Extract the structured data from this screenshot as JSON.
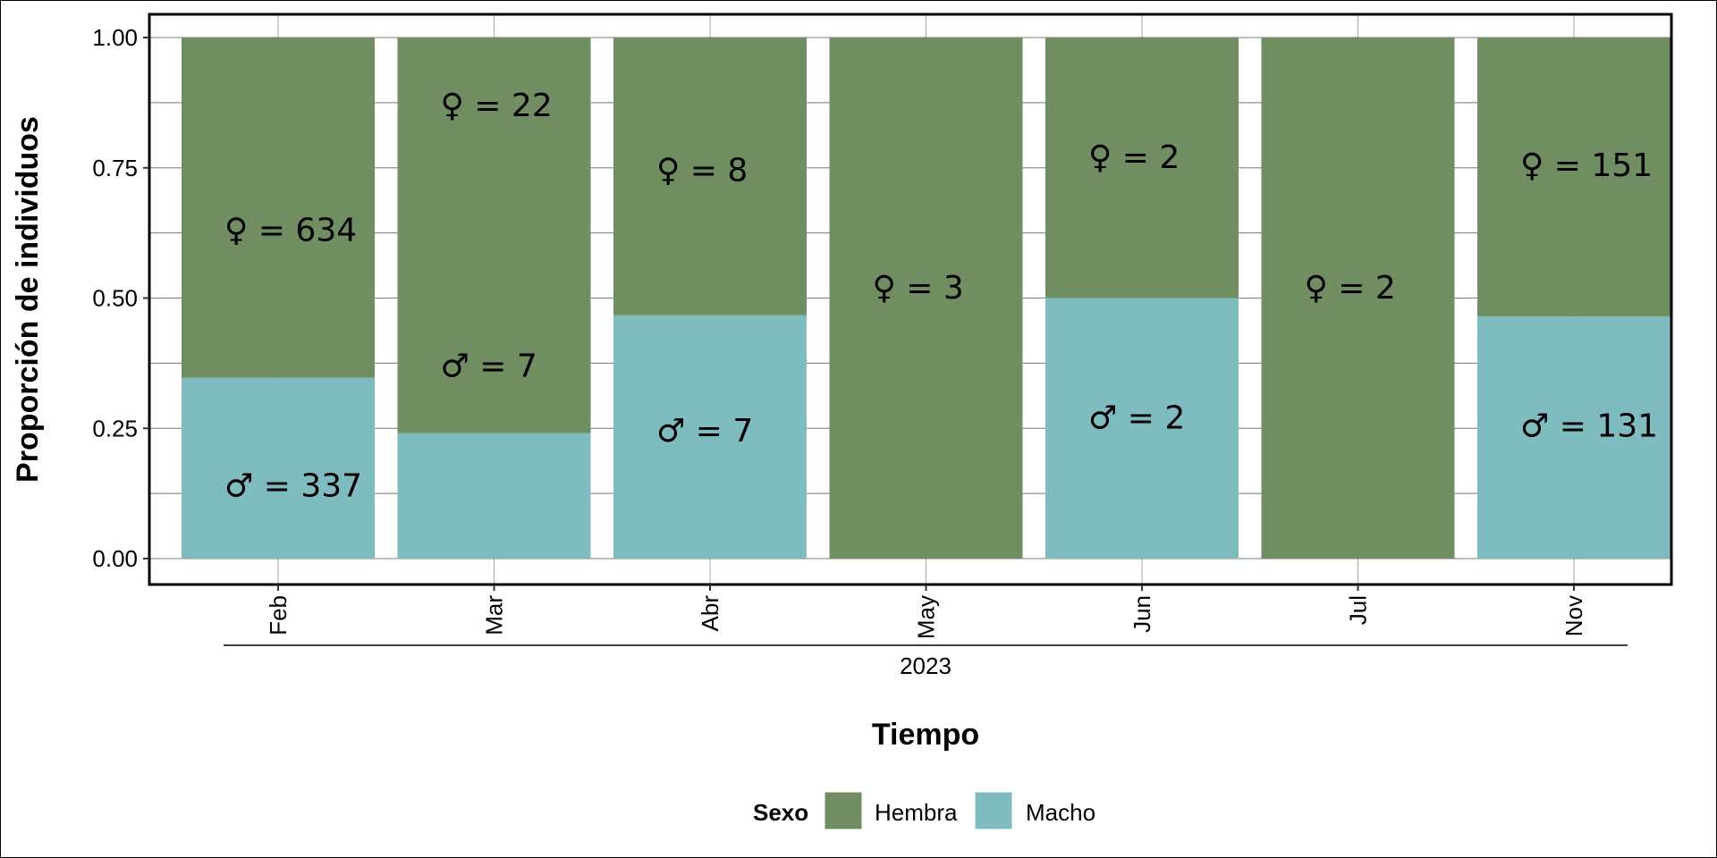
{
  "chart_data": {
    "type": "bar",
    "stacked": true,
    "categories": [
      "Feb",
      "Mar",
      "Abr",
      "May",
      "Jun",
      "Jul",
      "Nov"
    ],
    "group_label": "2023",
    "series": [
      {
        "name": "Macho",
        "color": "#7fbcbf",
        "values": [
          0.347,
          0.241,
          0.467,
          0.0,
          0.5,
          0.0,
          0.465
        ]
      },
      {
        "name": "Hembra",
        "color": "#718d62",
        "values": [
          0.653,
          0.759,
          0.533,
          1.0,
          0.5,
          1.0,
          0.535
        ]
      }
    ],
    "annotations": [
      {
        "category": "Feb",
        "text": "♀ = 634",
        "y": 0.63
      },
      {
        "category": "Feb",
        "text": "♂ = 337",
        "y": 0.14
      },
      {
        "category": "Mar",
        "text": "♀ = 22",
        "y": 0.87
      },
      {
        "category": "Mar",
        "text": "♂ = 7",
        "y": 0.37
      },
      {
        "category": "Abr",
        "text": "♀ = 8",
        "y": 0.745
      },
      {
        "category": "Abr",
        "text": "♂ = 7",
        "y": 0.245
      },
      {
        "category": "May",
        "text": "♀ = 3",
        "y": 0.52
      },
      {
        "category": "Jun",
        "text": "♀ = 2",
        "y": 0.77
      },
      {
        "category": "Jun",
        "text": "♂ = 2",
        "y": 0.27
      },
      {
        "category": "Jul",
        "text": "♀ = 2",
        "y": 0.52
      },
      {
        "category": "Nov",
        "text": "♀ = 151",
        "y": 0.755
      },
      {
        "category": "Nov",
        "text": "♂ = 131",
        "y": 0.255
      }
    ],
    "ylabel": "Proporción de individuos",
    "xlabel": "Tiempo",
    "ylim": [
      0,
      1
    ],
    "yticks": [
      0.0,
      0.25,
      0.5,
      0.75,
      1.0
    ],
    "ytick_labels": [
      "0.00",
      "0.25",
      "0.50",
      "0.75",
      "1.00"
    ],
    "grid": true,
    "legend": {
      "title": "Sexo",
      "position": "bottom",
      "items": [
        {
          "label": "Hembra",
          "color": "#718d62"
        },
        {
          "label": "Macho",
          "color": "#7fbcbf"
        }
      ]
    }
  }
}
